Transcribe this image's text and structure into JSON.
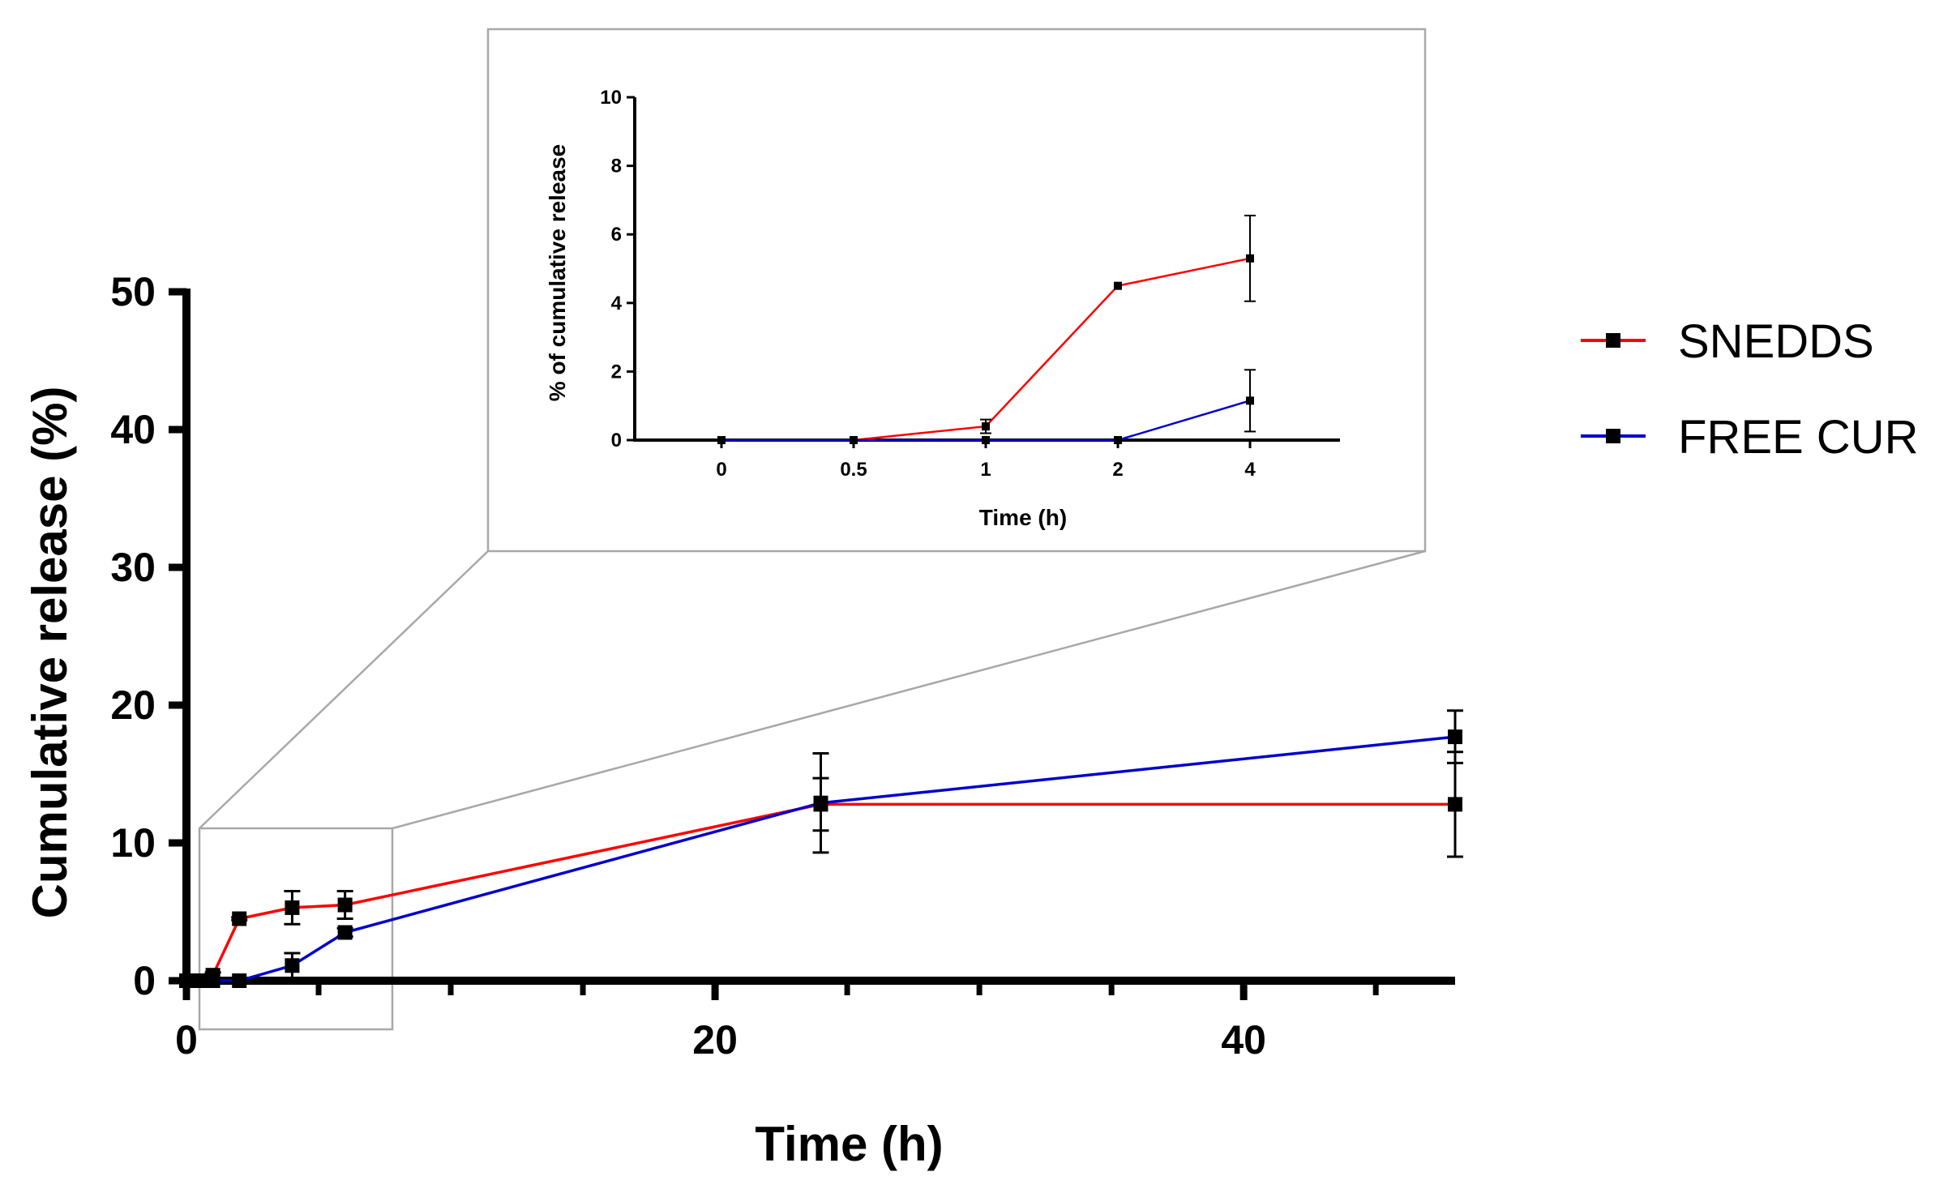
{
  "chart_data": [
    {
      "id": "main",
      "type": "line",
      "title": "",
      "xlabel": "Time (h)",
      "ylabel": "Cumulative release (%)",
      "xlim": [
        0,
        48
      ],
      "ylim": [
        0,
        50
      ],
      "xticks": [
        0,
        20,
        40
      ],
      "xminor": [
        5,
        10,
        15,
        25,
        30,
        35,
        45
      ],
      "yticks": [
        0,
        10,
        20,
        30,
        40,
        50
      ],
      "grid": false,
      "legend": "right",
      "series": [
        {
          "name": "SNEDDS",
          "color": "#ff0000",
          "x": [
            0,
            0.5,
            1,
            2,
            4,
            6,
            24,
            48
          ],
          "y": [
            0,
            0,
            0.4,
            4.5,
            5.3,
            5.5,
            12.8,
            12.8
          ],
          "err": [
            0,
            0,
            0.2,
            0.1,
            1.2,
            1.0,
            1.9,
            3.8
          ]
        },
        {
          "name": "FREE CUR",
          "color": "#0000cc",
          "x": [
            0,
            0.5,
            1,
            2,
            4,
            6,
            24,
            48
          ],
          "y": [
            0,
            0,
            0,
            0,
            1.1,
            3.5,
            12.9,
            17.7
          ],
          "err": [
            0,
            0,
            0,
            0,
            0.9,
            0.3,
            3.6,
            1.9
          ]
        }
      ]
    },
    {
      "id": "inset",
      "type": "line",
      "title": "",
      "xlabel": "Time (h)",
      "ylabel": "% of cumulative release",
      "categories": [
        "0",
        "0.5",
        "1",
        "2",
        "4"
      ],
      "ylim": [
        0,
        10
      ],
      "yticks": [
        0,
        2,
        4,
        6,
        8,
        10
      ],
      "grid": false,
      "series": [
        {
          "name": "SNEDDS",
          "color": "#ff0000",
          "values": [
            0,
            0,
            0.4,
            4.5,
            5.3
          ],
          "err": [
            0,
            0,
            0.2,
            0,
            1.25
          ]
        },
        {
          "name": "FREE CUR",
          "color": "#0000cc",
          "values": [
            0,
            0,
            0,
            0,
            1.15
          ],
          "err": [
            0,
            0,
            0,
            0,
            0.9
          ]
        }
      ]
    }
  ]
}
